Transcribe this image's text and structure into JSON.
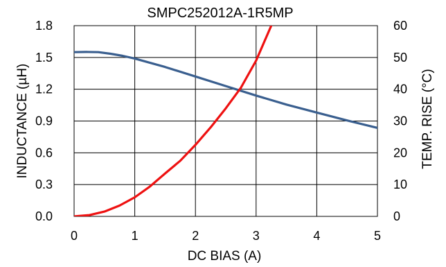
{
  "chart_data": {
    "type": "line",
    "title": "SMPC252012A-1R5MP",
    "xlabel": "DC BIAS (A)",
    "ylabel_left": "INDUCTANCE (µH)",
    "ylabel_right": "TEMP. RISE (°C)",
    "xlim": [
      0,
      5
    ],
    "ylim_left": [
      0,
      1.8
    ],
    "ylim_right": [
      0,
      60
    ],
    "x_ticks": [
      "0",
      "1",
      "2",
      "3",
      "4",
      "5"
    ],
    "y_left_ticks": [
      "0.0",
      "0.3",
      "0.6",
      "0.9",
      "1.2",
      "1.5",
      "1.8"
    ],
    "y_right_ticks": [
      "0",
      "10",
      "20",
      "30",
      "40",
      "50",
      "60"
    ],
    "grid": true,
    "series": [
      {
        "axis": "left",
        "color": "#3a5f8f",
        "x": [
          0,
          0.2,
          0.4,
          0.6,
          0.8,
          1.0,
          1.5,
          2.0,
          2.5,
          3.0,
          3.5,
          4.0,
          4.5,
          5.0
        ],
        "y": [
          1.55,
          1.552,
          1.55,
          1.535,
          1.515,
          1.49,
          1.41,
          1.32,
          1.23,
          1.14,
          1.055,
          0.98,
          0.905,
          0.835
        ]
      },
      {
        "axis": "right",
        "color": "#ee1111",
        "x": [
          0,
          0.25,
          0.5,
          0.75,
          1.0,
          1.25,
          1.5,
          1.75,
          2.0,
          2.25,
          2.5,
          2.75,
          3.0,
          3.25
        ],
        "y": [
          0,
          0.4,
          1.5,
          3.4,
          6.0,
          9.4,
          13.5,
          17.5,
          22.5,
          28.0,
          34.0,
          40.5,
          49.0,
          60.0
        ]
      }
    ]
  }
}
